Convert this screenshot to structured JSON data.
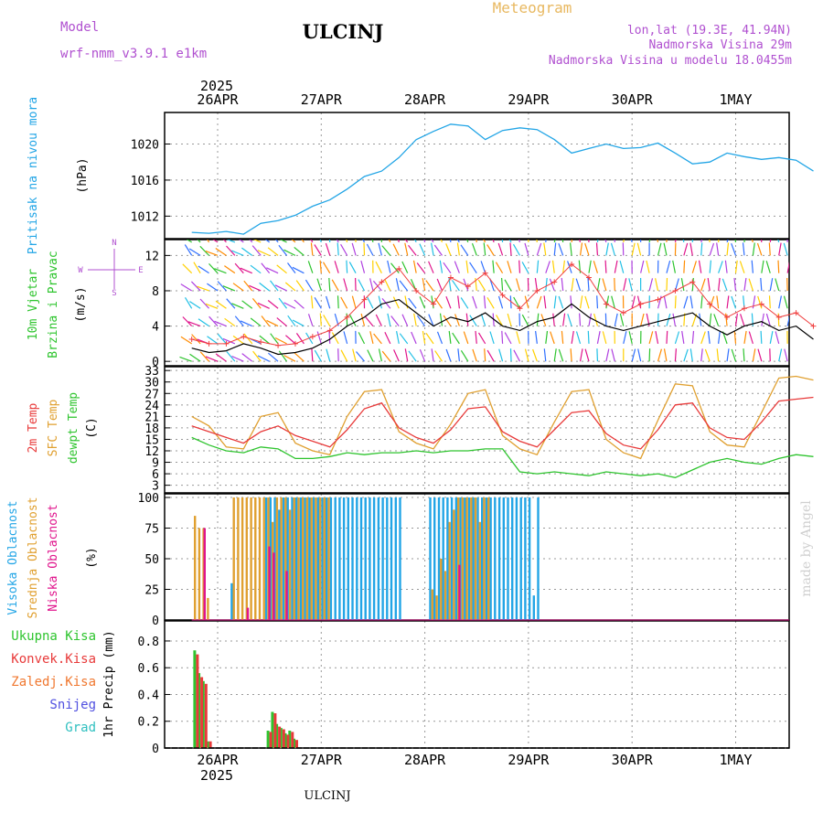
{
  "header": {
    "title": "ULCINJ",
    "meteogram": "Meteogram",
    "model_label": "Model",
    "model_name": "wrf-nmm_v3.9.1 e1km",
    "lonlat": "lon,lat (19.3E, 41.94N)",
    "height": "Nadmorska Visina 29m",
    "model_height": "Nadmorska Visina u modelu 18.0455m",
    "footer_station": "ULCINJ",
    "credit": "made by Angel"
  },
  "time_axis": {
    "year": "2025",
    "day_labels": [
      "26APR",
      "27APR",
      "28APR",
      "29APR",
      "30APR",
      "1MAY"
    ],
    "start_hours_before_first_label": 6,
    "total_hours": 144
  },
  "colors": {
    "pressure": "#22a5e6",
    "temp2m": "#e83a3a",
    "sfc_temp": "#e0a030",
    "dewpoint": "#2ec42e",
    "wind_speed": "#000000",
    "gust": "#f04040",
    "high_cloud": "#22a5e6",
    "mid_cloud": "#e0a030",
    "low_cloud": "#e0148c",
    "total_precip": "#2ec42e",
    "conv_precip": "#e83a3a",
    "frozen_precip": "#f07830",
    "snow": "#5050e0",
    "graupel": "#30c0c0",
    "title_meteogram": "#e8b860",
    "info_text": "#b050d0"
  },
  "panels": {
    "pressure": {
      "labels": [
        "Pritisak na nivou mora"
      ],
      "unit": "(hPa)",
      "ticks": [
        "1012",
        "1016",
        "1020"
      ]
    },
    "wind": {
      "labels": [
        "10m Vjetar",
        "Brzina i Pravac"
      ],
      "unit": "(m/s)",
      "ticks": [
        "0",
        "4",
        "8",
        "12"
      ],
      "compass": {
        "n": "N",
        "s": "S",
        "e": "E",
        "w": "W"
      }
    },
    "temperature": {
      "labels": [
        "2m Temp",
        "SFC Temp",
        "dewpt Temp"
      ],
      "unit": "(C)",
      "ticks": [
        "3",
        "6",
        "9",
        "12",
        "15",
        "18",
        "21",
        "24",
        "27",
        "30",
        "33"
      ]
    },
    "clouds": {
      "labels": [
        "Visoka Oblacnost",
        "Srednja Oblacnost",
        "Niska Oblacnost"
      ],
      "unit": "(%)",
      "ticks": [
        "0",
        "25",
        "50",
        "75",
        "100"
      ]
    },
    "precip": {
      "labels": [
        "Ukupna Kisa",
        "Konvek.Kisa",
        "Zaledj.Kisa",
        "Snijeg",
        "Grad"
      ],
      "ylabel": "1hr Precip (mm)",
      "ticks": [
        "0",
        "0.2",
        "0.4",
        "0.6",
        "0.8"
      ]
    }
  },
  "chart_data": [
    {
      "type": "line",
      "name": "pressure",
      "ylabel": "(hPa)",
      "ylim": [
        1009.5,
        1023.5
      ],
      "x_hours": [
        0,
        4,
        8,
        12,
        16,
        20,
        24,
        28,
        32,
        36,
        40,
        44,
        48,
        52,
        56,
        60,
        64,
        68,
        72,
        76,
        80,
        84,
        88,
        92,
        96,
        100,
        104,
        108,
        112,
        116,
        120,
        124,
        128,
        132,
        136,
        140,
        144
      ],
      "series": [
        {
          "values": [
            1010.2,
            1010.1,
            1010.3,
            1010.0,
            1011.2,
            1011.5,
            1012.1,
            1013.1,
            1013.8,
            1015.0,
            1016.4,
            1017.0,
            1018.5,
            1020.5,
            1021.4,
            1022.2,
            1022.0,
            1020.5,
            1021.5,
            1021.8,
            1021.6,
            1020.5,
            1019.0,
            1019.5,
            1020.0,
            1019.5,
            1019.6,
            1020.1,
            1019.0,
            1017.8,
            1018.0,
            1019.0,
            1018.6,
            1018.3,
            1018.5,
            1018.2,
            1017.0
          ]
        }
      ]
    },
    {
      "type": "line",
      "name": "wind",
      "ylabel": "(m/s)",
      "ylim": [
        -0.5,
        13.8
      ],
      "x_hours": [
        0,
        4,
        8,
        12,
        16,
        20,
        24,
        28,
        32,
        36,
        40,
        44,
        48,
        52,
        56,
        60,
        64,
        68,
        72,
        76,
        80,
        84,
        88,
        92,
        96,
        100,
        104,
        108,
        112,
        116,
        120,
        124,
        128,
        132,
        136,
        140,
        144
      ],
      "series": [
        {
          "values": [
            1.5,
            1.0,
            1.2,
            2.0,
            1.5,
            0.8,
            1.0,
            1.5,
            2.5,
            4.0,
            5.0,
            6.5,
            7.0,
            5.5,
            4.0,
            5.0,
            4.5,
            5.5,
            4.0,
            3.5,
            4.5,
            5.0,
            6.5,
            5.0,
            4.0,
            3.5,
            4.0,
            4.5,
            5.0,
            5.5,
            4.0,
            3.0,
            4.0,
            4.5,
            3.5,
            4.0,
            2.5
          ]
        },
        {
          "values": [
            2.5,
            2.0,
            2.0,
            2.8,
            2.2,
            1.8,
            2.0,
            2.8,
            3.5,
            5.0,
            7.0,
            9.0,
            10.5,
            8.0,
            6.5,
            9.5,
            8.5,
            10.0,
            7.5,
            6.0,
            8.0,
            9.0,
            11.0,
            9.5,
            6.5,
            5.5,
            6.5,
            7.0,
            8.0,
            9.0,
            6.5,
            5.0,
            6.0,
            6.5,
            5.0,
            5.5,
            4.0
          ]
        }
      ]
    },
    {
      "type": "line",
      "name": "temperature",
      "ylabel": "(C)",
      "ylim": [
        1,
        34
      ],
      "x_hours": [
        0,
        4,
        8,
        12,
        16,
        20,
        24,
        28,
        32,
        36,
        40,
        44,
        48,
        52,
        56,
        60,
        64,
        68,
        72,
        76,
        80,
        84,
        88,
        92,
        96,
        100,
        104,
        108,
        112,
        116,
        120,
        124,
        128,
        132,
        136,
        140,
        144
      ],
      "series": [
        {
          "values": [
            18.5,
            17.0,
            15.5,
            14.0,
            17.0,
            18.5,
            16.0,
            14.5,
            13.0,
            17.5,
            23.0,
            24.5,
            18.0,
            15.5,
            14.0,
            17.5,
            23.0,
            23.5,
            17.0,
            14.5,
            13.0,
            17.5,
            22.0,
            22.5,
            16.5,
            13.5,
            12.5,
            17.5,
            24.0,
            24.5,
            18.0,
            15.5,
            15.0,
            19.5,
            25.0,
            25.5,
            26.0
          ]
        },
        {
          "values": [
            21.0,
            18.5,
            13.0,
            12.5,
            21.0,
            22.0,
            14.0,
            12.0,
            11.0,
            21.0,
            27.5,
            28.0,
            17.0,
            14.0,
            12.5,
            19.0,
            27.0,
            28.0,
            16.0,
            12.5,
            11.0,
            19.5,
            27.5,
            28.0,
            15.0,
            11.5,
            10.0,
            20.0,
            29.5,
            29.0,
            17.0,
            13.5,
            13.0,
            22.0,
            31.0,
            31.5,
            30.5
          ]
        },
        {
          "values": [
            15.5,
            13.5,
            12.0,
            11.5,
            13.0,
            12.5,
            10.0,
            10.0,
            10.5,
            11.5,
            11.0,
            11.5,
            11.5,
            12.0,
            11.5,
            12.0,
            12.0,
            12.5,
            12.5,
            6.5,
            6.0,
            6.5,
            6.0,
            5.5,
            6.5,
            6.0,
            5.5,
            6.0,
            5.0,
            7.0,
            9.0,
            10.0,
            9.0,
            8.5,
            10.0,
            11.0,
            10.5
          ]
        }
      ]
    },
    {
      "type": "bar",
      "name": "clouds",
      "ylabel": "(%)",
      "ylim": [
        0,
        103
      ],
      "x_hours": [
        0,
        1,
        2,
        3,
        4,
        5,
        6,
        7,
        8,
        9,
        10,
        11,
        12,
        13,
        14,
        15,
        16,
        17,
        18,
        19,
        20,
        21,
        22,
        23,
        24,
        25,
        26,
        27,
        28,
        29,
        30,
        31,
        32,
        33,
        34,
        35,
        36,
        37,
        38,
        39,
        40,
        41,
        42,
        43,
        44,
        45,
        46,
        47,
        48,
        49,
        50,
        51,
        52,
        53,
        54,
        55,
        56,
        57,
        58,
        59,
        60,
        61,
        62,
        63,
        64,
        65,
        66,
        67,
        68,
        69,
        70,
        71,
        72,
        73,
        74,
        75,
        76,
        77,
        78,
        79,
        80,
        81,
        82,
        83,
        84,
        85,
        86,
        87,
        88,
        89,
        90,
        91,
        92,
        93,
        94,
        95,
        96,
        97,
        98,
        99,
        100,
        101,
        102,
        103,
        104,
        105,
        106,
        107,
        108,
        109,
        110,
        111,
        112,
        113,
        114,
        115,
        116,
        117,
        118,
        119,
        120,
        121,
        122,
        123,
        124,
        125,
        126,
        127,
        128,
        129,
        130,
        131,
        132,
        133,
        134,
        135,
        136,
        137,
        138,
        139,
        140,
        141,
        142,
        143,
        144
      ],
      "series": [
        {
          "name": "Visoka Oblacnost",
          "values": [
            0,
            0,
            0,
            0,
            0,
            0,
            0,
            0,
            0,
            30,
            0,
            0,
            0,
            0,
            0,
            0,
            0,
            100,
            100,
            100,
            90,
            100,
            100,
            100,
            100,
            100,
            100,
            100,
            100,
            100,
            100,
            100,
            100,
            100,
            100,
            100,
            100,
            100,
            100,
            100,
            100,
            100,
            100,
            100,
            100,
            100,
            100,
            100,
            100,
            0,
            0,
            0,
            0,
            0,
            0,
            100,
            100,
            100,
            100,
            100,
            100,
            100,
            100,
            100,
            100,
            100,
            100,
            100,
            100,
            100,
            100,
            100,
            100,
            100,
            100,
            100,
            100,
            100,
            100,
            20,
            100,
            0,
            0,
            0,
            0,
            0,
            0,
            0,
            0,
            0,
            0,
            0,
            0,
            0,
            0,
            0,
            0,
            0,
            0,
            0,
            0,
            0,
            0,
            0,
            0,
            0,
            0,
            0,
            0,
            0,
            0,
            0,
            0,
            0,
            0,
            0,
            0,
            0,
            0,
            0,
            0,
            0,
            0,
            0,
            0,
            0,
            0,
            0,
            0,
            0,
            0,
            0,
            0,
            0,
            0,
            0,
            0,
            0,
            0,
            0,
            0,
            0,
            0,
            0,
            0
          ]
        },
        {
          "name": "Srednja Oblacnost",
          "values": [
            0,
            85,
            75,
            75,
            18,
            0,
            0,
            0,
            0,
            0,
            100,
            100,
            100,
            100,
            100,
            100,
            100,
            100,
            100,
            80,
            100,
            100,
            100,
            90,
            100,
            100,
            100,
            100,
            100,
            100,
            100,
            100,
            100,
            0,
            0,
            0,
            0,
            0,
            0,
            0,
            0,
            0,
            0,
            0,
            0,
            0,
            0,
            0,
            0,
            0,
            0,
            0,
            0,
            0,
            0,
            0,
            25,
            20,
            50,
            40,
            80,
            90,
            100,
            100,
            100,
            100,
            100,
            80,
            100,
            100,
            0,
            0,
            0,
            0,
            0,
            0,
            0,
            0,
            0,
            0,
            0,
            0,
            0,
            0,
            0,
            0,
            0,
            0,
            0,
            0,
            0,
            0,
            0,
            0,
            0,
            0,
            0,
            0,
            0,
            0,
            0,
            0,
            0,
            0,
            0,
            0,
            0,
            0,
            0,
            0,
            0,
            0,
            0,
            0,
            0,
            0,
            0,
            0,
            0,
            0,
            0,
            0,
            0,
            0,
            0,
            0,
            0,
            0,
            0,
            0,
            0,
            0,
            0,
            0,
            0,
            0,
            0,
            0,
            0,
            0,
            0,
            0,
            0,
            0,
            0
          ]
        },
        {
          "name": "Niska Oblacnost",
          "values": [
            0,
            0,
            0,
            75,
            0,
            0,
            0,
            0,
            0,
            0,
            0,
            0,
            0,
            10,
            0,
            0,
            0,
            0,
            60,
            55,
            0,
            0,
            40,
            0,
            0,
            0,
            0,
            0,
            0,
            0,
            0,
            0,
            0,
            0,
            0,
            0,
            0,
            0,
            0,
            0,
            0,
            0,
            0,
            0,
            0,
            0,
            0,
            0,
            0,
            0,
            0,
            0,
            0,
            0,
            0,
            0,
            0,
            0,
            0,
            0,
            0,
            0,
            45,
            0,
            0,
            0,
            0,
            0,
            0,
            0,
            0,
            0,
            0,
            0,
            0,
            0,
            0,
            0,
            0,
            0,
            0,
            0,
            0,
            0,
            0,
            0,
            0,
            0,
            0,
            0,
            0,
            0,
            0,
            0,
            0,
            0,
            0,
            0,
            0,
            0,
            0,
            0,
            0,
            0,
            0,
            0,
            0,
            0,
            0,
            0,
            0,
            0,
            0,
            0,
            0,
            0,
            0,
            0,
            0,
            0,
            0,
            0,
            0,
            0,
            0,
            0,
            0,
            0,
            0,
            0,
            0,
            0,
            0,
            0,
            0,
            0,
            0,
            0,
            0,
            0,
            0,
            0,
            0,
            0,
            0
          ]
        }
      ]
    },
    {
      "type": "bar",
      "name": "precip",
      "ylabel": "1hr Precip (mm)",
      "ylim": [
        0,
        0.95
      ],
      "x_hours": [
        0,
        1,
        2,
        3,
        4,
        5,
        6,
        7,
        8,
        9,
        10,
        11,
        12,
        13,
        14,
        15,
        16,
        17,
        18,
        19,
        20,
        21,
        22,
        23,
        24
      ],
      "series": [
        {
          "name": "Ukupna Kisa",
          "values": [
            0,
            0.73,
            0.56,
            0.5,
            0.05,
            0,
            0,
            0,
            0,
            0,
            0,
            0,
            0,
            0,
            0,
            0,
            0,
            0,
            0.13,
            0.27,
            0.18,
            0.15,
            0.11,
            0.13,
            0.07
          ]
        },
        {
          "name": "Konvek.Kisa",
          "values": [
            0,
            0.7,
            0.53,
            0.48,
            0.05,
            0,
            0,
            0,
            0,
            0,
            0,
            0,
            0,
            0,
            0,
            0,
            0,
            0,
            0.12,
            0.26,
            0.16,
            0.14,
            0.1,
            0.12,
            0.06
          ]
        }
      ]
    }
  ]
}
